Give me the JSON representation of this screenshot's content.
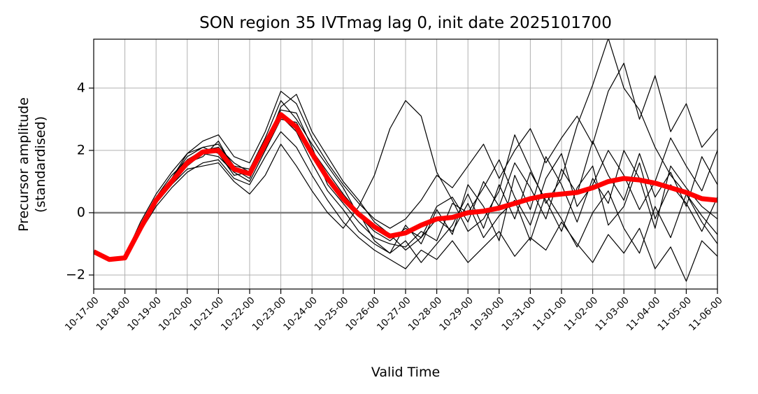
{
  "chart_data": {
    "type": "line",
    "title": "SON region 35 IVTmag lag 0, init date 2025101700",
    "xlabel": "Valid Time",
    "ylabel": [
      "Precursor amplitude",
      "(standardised)"
    ],
    "x": [
      "10-17-00",
      "10-17-12",
      "10-18-00",
      "10-18-12",
      "10-19-00",
      "10-19-12",
      "10-20-00",
      "10-20-12",
      "10-21-00",
      "10-21-12",
      "10-22-00",
      "10-22-12",
      "10-23-00",
      "10-23-12",
      "10-24-00",
      "10-24-12",
      "10-25-00",
      "10-25-12",
      "10-26-00",
      "10-26-12",
      "10-27-00",
      "10-27-12",
      "10-28-00",
      "10-28-12",
      "10-29-00",
      "10-29-12",
      "10-30-00",
      "10-30-12",
      "10-31-00",
      "10-31-12",
      "11-01-00",
      "11-01-12",
      "11-02-00",
      "11-02-12",
      "11-03-00",
      "11-03-12",
      "11-04-00",
      "11-04-12",
      "11-05-00",
      "11-05-12",
      "11-06-00"
    ],
    "xlim": [
      "10-17-00",
      "11-06-00"
    ],
    "xticks": [
      "10-17-00",
      "10-18-00",
      "10-19-00",
      "10-20-00",
      "10-21-00",
      "10-22-00",
      "10-23-00",
      "10-24-00",
      "10-25-00",
      "10-26-00",
      "10-27-00",
      "10-28-00",
      "10-29-00",
      "10-30-00",
      "10-31-00",
      "11-01-00",
      "11-02-00",
      "11-03-00",
      "11-04-00",
      "11-05-00",
      "11-06-00"
    ],
    "ylim": [
      -2.45,
      5.57
    ],
    "yticks": [
      {
        "value": -2,
        "label": "−2"
      },
      0,
      2,
      4
    ],
    "grid": true,
    "reference_line": {
      "value": 0,
      "color": "#808080"
    },
    "series": [
      {
        "color": "#000000",
        "linewidth": 1.2,
        "values": [
          null,
          null,
          -1.4,
          -0.3,
          0.6,
          1.3,
          1.9,
          2.3,
          2.5,
          1.8,
          1.6,
          2.6,
          3.9,
          3.5,
          2.4,
          1.6,
          0.9,
          0.3,
          -0.2,
          -0.5,
          -0.2,
          0.4,
          1.2,
          0.8,
          1.5,
          2.2,
          1.1,
          2.0,
          2.7,
          1.6,
          2.4,
          3.1,
          2.2,
          3.9,
          4.8,
          3.0,
          4.4,
          2.6,
          3.5,
          2.1,
          2.7
        ]
      },
      {
        "color": "#000000",
        "linewidth": 1.2,
        "values": [
          null,
          null,
          -1.5,
          -0.6,
          0.2,
          0.8,
          1.3,
          1.6,
          1.7,
          1.1,
          0.9,
          1.8,
          2.6,
          2.1,
          1.2,
          0.4,
          -0.3,
          -0.8,
          -1.2,
          -1.5,
          -1.8,
          -1.2,
          -1.5,
          -0.9,
          -1.6,
          -1.1,
          -0.6,
          -1.4,
          -0.8,
          -1.2,
          -0.3,
          -1.0,
          -1.6,
          -0.7,
          -1.3,
          -0.5,
          -1.8,
          -1.1,
          -2.2,
          -0.9,
          -1.4
        ]
      },
      {
        "color": "#000000",
        "linewidth": 1.2,
        "values": [
          null,
          null,
          -1.45,
          -0.4,
          0.5,
          1.1,
          1.8,
          2.1,
          2.2,
          1.5,
          1.4,
          2.4,
          3.6,
          3.0,
          2.2,
          1.5,
          0.8,
          -0.1,
          -0.6,
          -0.9,
          -0.5,
          -0.8,
          0.2,
          0.5,
          -0.3,
          1.0,
          0.2,
          1.6,
          0.8,
          -0.2,
          1.4,
          0.6,
          2.3,
          1.2,
          0.4,
          1.9,
          0.5,
          1.3,
          0.2,
          1.8,
          0.9
        ]
      },
      {
        "color": "#000000",
        "linewidth": 1.2,
        "values": [
          null,
          null,
          -1.4,
          -0.5,
          0.3,
          0.9,
          1.4,
          1.5,
          1.6,
          1.0,
          0.6,
          1.2,
          2.2,
          1.5,
          0.7,
          0.0,
          -0.5,
          0.2,
          1.2,
          2.7,
          3.6,
          3.1,
          1.3,
          0.4,
          -0.6,
          -0.2,
          0.7,
          2.5,
          1.4,
          0.3,
          1.1,
          2.8,
          4.1,
          5.6,
          4.0,
          3.3,
          2.1,
          1.2,
          0.6,
          -0.3,
          -1.0
        ]
      },
      {
        "color": "#000000",
        "linewidth": 1.2,
        "values": [
          null,
          null,
          -1.5,
          -0.5,
          0.4,
          1.0,
          1.5,
          1.9,
          1.8,
          1.3,
          1.0,
          2.0,
          3.0,
          2.9,
          2.0,
          1.3,
          0.6,
          0.0,
          -0.9,
          -1.3,
          -0.9,
          -1.6,
          -1.0,
          -0.4,
          0.6,
          -0.5,
          0.9,
          -0.2,
          1.3,
          0.4,
          -0.6,
          0.8,
          1.5,
          -0.4,
          0.2,
          1.6,
          -0.2,
          0.9,
          0.3,
          -0.6,
          0.5
        ]
      },
      {
        "color": "#000000",
        "linewidth": 1.2,
        "values": [
          null,
          null,
          -1.4,
          -0.4,
          0.5,
          1.2,
          1.7,
          2.0,
          2.1,
          1.6,
          1.3,
          2.3,
          3.3,
          3.2,
          2.1,
          0.9,
          0.3,
          -0.3,
          -0.8,
          -1.0,
          -1.1,
          -0.6,
          -0.9,
          0.3,
          0.0,
          0.8,
          1.7,
          0.5,
          -0.4,
          1.1,
          1.9,
          0.2,
          0.9,
          2.0,
          1.2,
          0.1,
          1.0,
          2.4,
          1.5,
          0.7,
          2.0
        ]
      },
      {
        "color": "#000000",
        "linewidth": 1.2,
        "values": [
          null,
          null,
          -1.45,
          -0.5,
          0.3,
          0.9,
          1.6,
          1.8,
          2.3,
          1.4,
          1.1,
          2.1,
          3.4,
          3.8,
          2.6,
          1.8,
          1.0,
          0.4,
          -0.3,
          -0.7,
          -1.2,
          -0.8,
          -0.2,
          -0.6,
          0.3,
          -0.8,
          -0.1,
          0.4,
          -0.9,
          0.6,
          -0.2,
          -1.1,
          0.0,
          0.7,
          -0.5,
          -1.3,
          0.2,
          -0.8,
          0.6,
          -0.1,
          -0.7
        ]
      },
      {
        "color": "#000000",
        "linewidth": 1.2,
        "values": [
          null,
          null,
          -1.5,
          -0.6,
          0.4,
          1.1,
          1.9,
          2.1,
          1.9,
          1.2,
          1.3,
          2.2,
          3.1,
          2.6,
          1.6,
          0.7,
          0.1,
          -0.6,
          -1.0,
          -1.3,
          -0.4,
          -1.0,
          0.1,
          -0.7,
          0.9,
          0.2,
          -0.9,
          1.2,
          0.1,
          1.8,
          0.9,
          -0.3,
          1.1,
          0.3,
          2.0,
          1.1,
          -0.5,
          1.5,
          0.8,
          0.2,
          -0.2
        ]
      },
      {
        "color": "#ff0000",
        "linewidth": 7,
        "values": [
          -1.25,
          -1.5,
          -1.45,
          -0.5,
          0.4,
          1.0,
          1.6,
          1.95,
          2.0,
          1.4,
          1.25,
          2.2,
          3.15,
          2.75,
          1.9,
          1.1,
          0.45,
          -0.05,
          -0.45,
          -0.75,
          -0.65,
          -0.4,
          -0.2,
          -0.15,
          0.0,
          0.05,
          0.15,
          0.3,
          0.45,
          0.55,
          0.6,
          0.65,
          0.8,
          1.0,
          1.1,
          1.05,
          0.95,
          0.8,
          0.65,
          0.45,
          0.4
        ]
      }
    ]
  }
}
